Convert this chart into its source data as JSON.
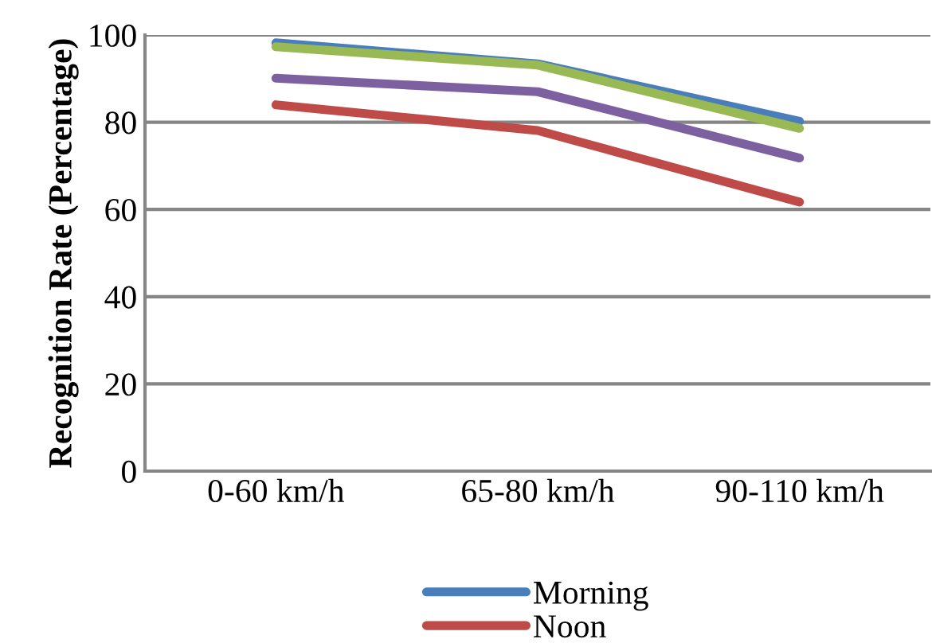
{
  "chart_data": {
    "type": "line",
    "ylabel": "Recognition Rate (Percentage)",
    "categories": [
      "0-60 km/h",
      "65-80 km/h",
      "90-110 km/h"
    ],
    "series": [
      {
        "name": "Morning",
        "color": "#4a7ebb",
        "values": [
          98.2,
          93.4,
          80.2
        ]
      },
      {
        "name": "Noon",
        "color": "#be4b48",
        "values": [
          84.0,
          78.1,
          61.7
        ]
      },
      {
        "color": "#7d60a0",
        "values": [
          90.1,
          87.0,
          71.8
        ]
      },
      {
        "color": "#98b954",
        "values": [
          97.3,
          93.1,
          78.6
        ]
      }
    ],
    "ylim": [
      0,
      100
    ],
    "yticks": [
      0,
      20,
      40,
      60,
      80,
      100
    ],
    "grid": "y",
    "legend": "bottom",
    "marker": "none",
    "line_style": "solid"
  }
}
